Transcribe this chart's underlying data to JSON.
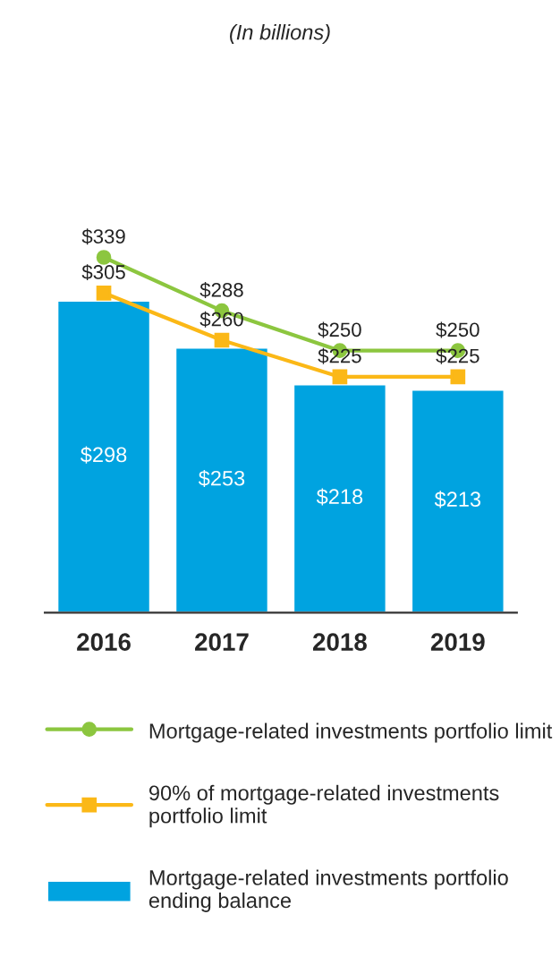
{
  "chart_data": {
    "type": "bar",
    "title": "(In billions)",
    "categories": [
      "2016",
      "2017",
      "2018",
      "2019"
    ],
    "series": [
      {
        "name": "Mortgage-related investments portfolio\nending balance",
        "color": "#00a3e0",
        "values": [
          298,
          253,
          218,
          213
        ],
        "value_labels": [
          "$298",
          "$253",
          "$218",
          "$213"
        ]
      },
      {
        "name": "Mortgage-related investments portfolio limit",
        "type": "line",
        "color": "#8cc63f",
        "marker": "circle",
        "values": [
          339,
          288,
          250,
          250
        ],
        "value_labels": [
          "$339",
          "$288",
          "$250",
          "$250"
        ]
      },
      {
        "name": "90% of mortgage-related investments\nportfolio limit",
        "type": "line",
        "color": "#fbb817",
        "marker": "square",
        "values": [
          305,
          260,
          225,
          225
        ],
        "value_labels": [
          "$305",
          "$260",
          "$225",
          "$225"
        ]
      }
    ],
    "legend": "bottom",
    "grid": false
  }
}
